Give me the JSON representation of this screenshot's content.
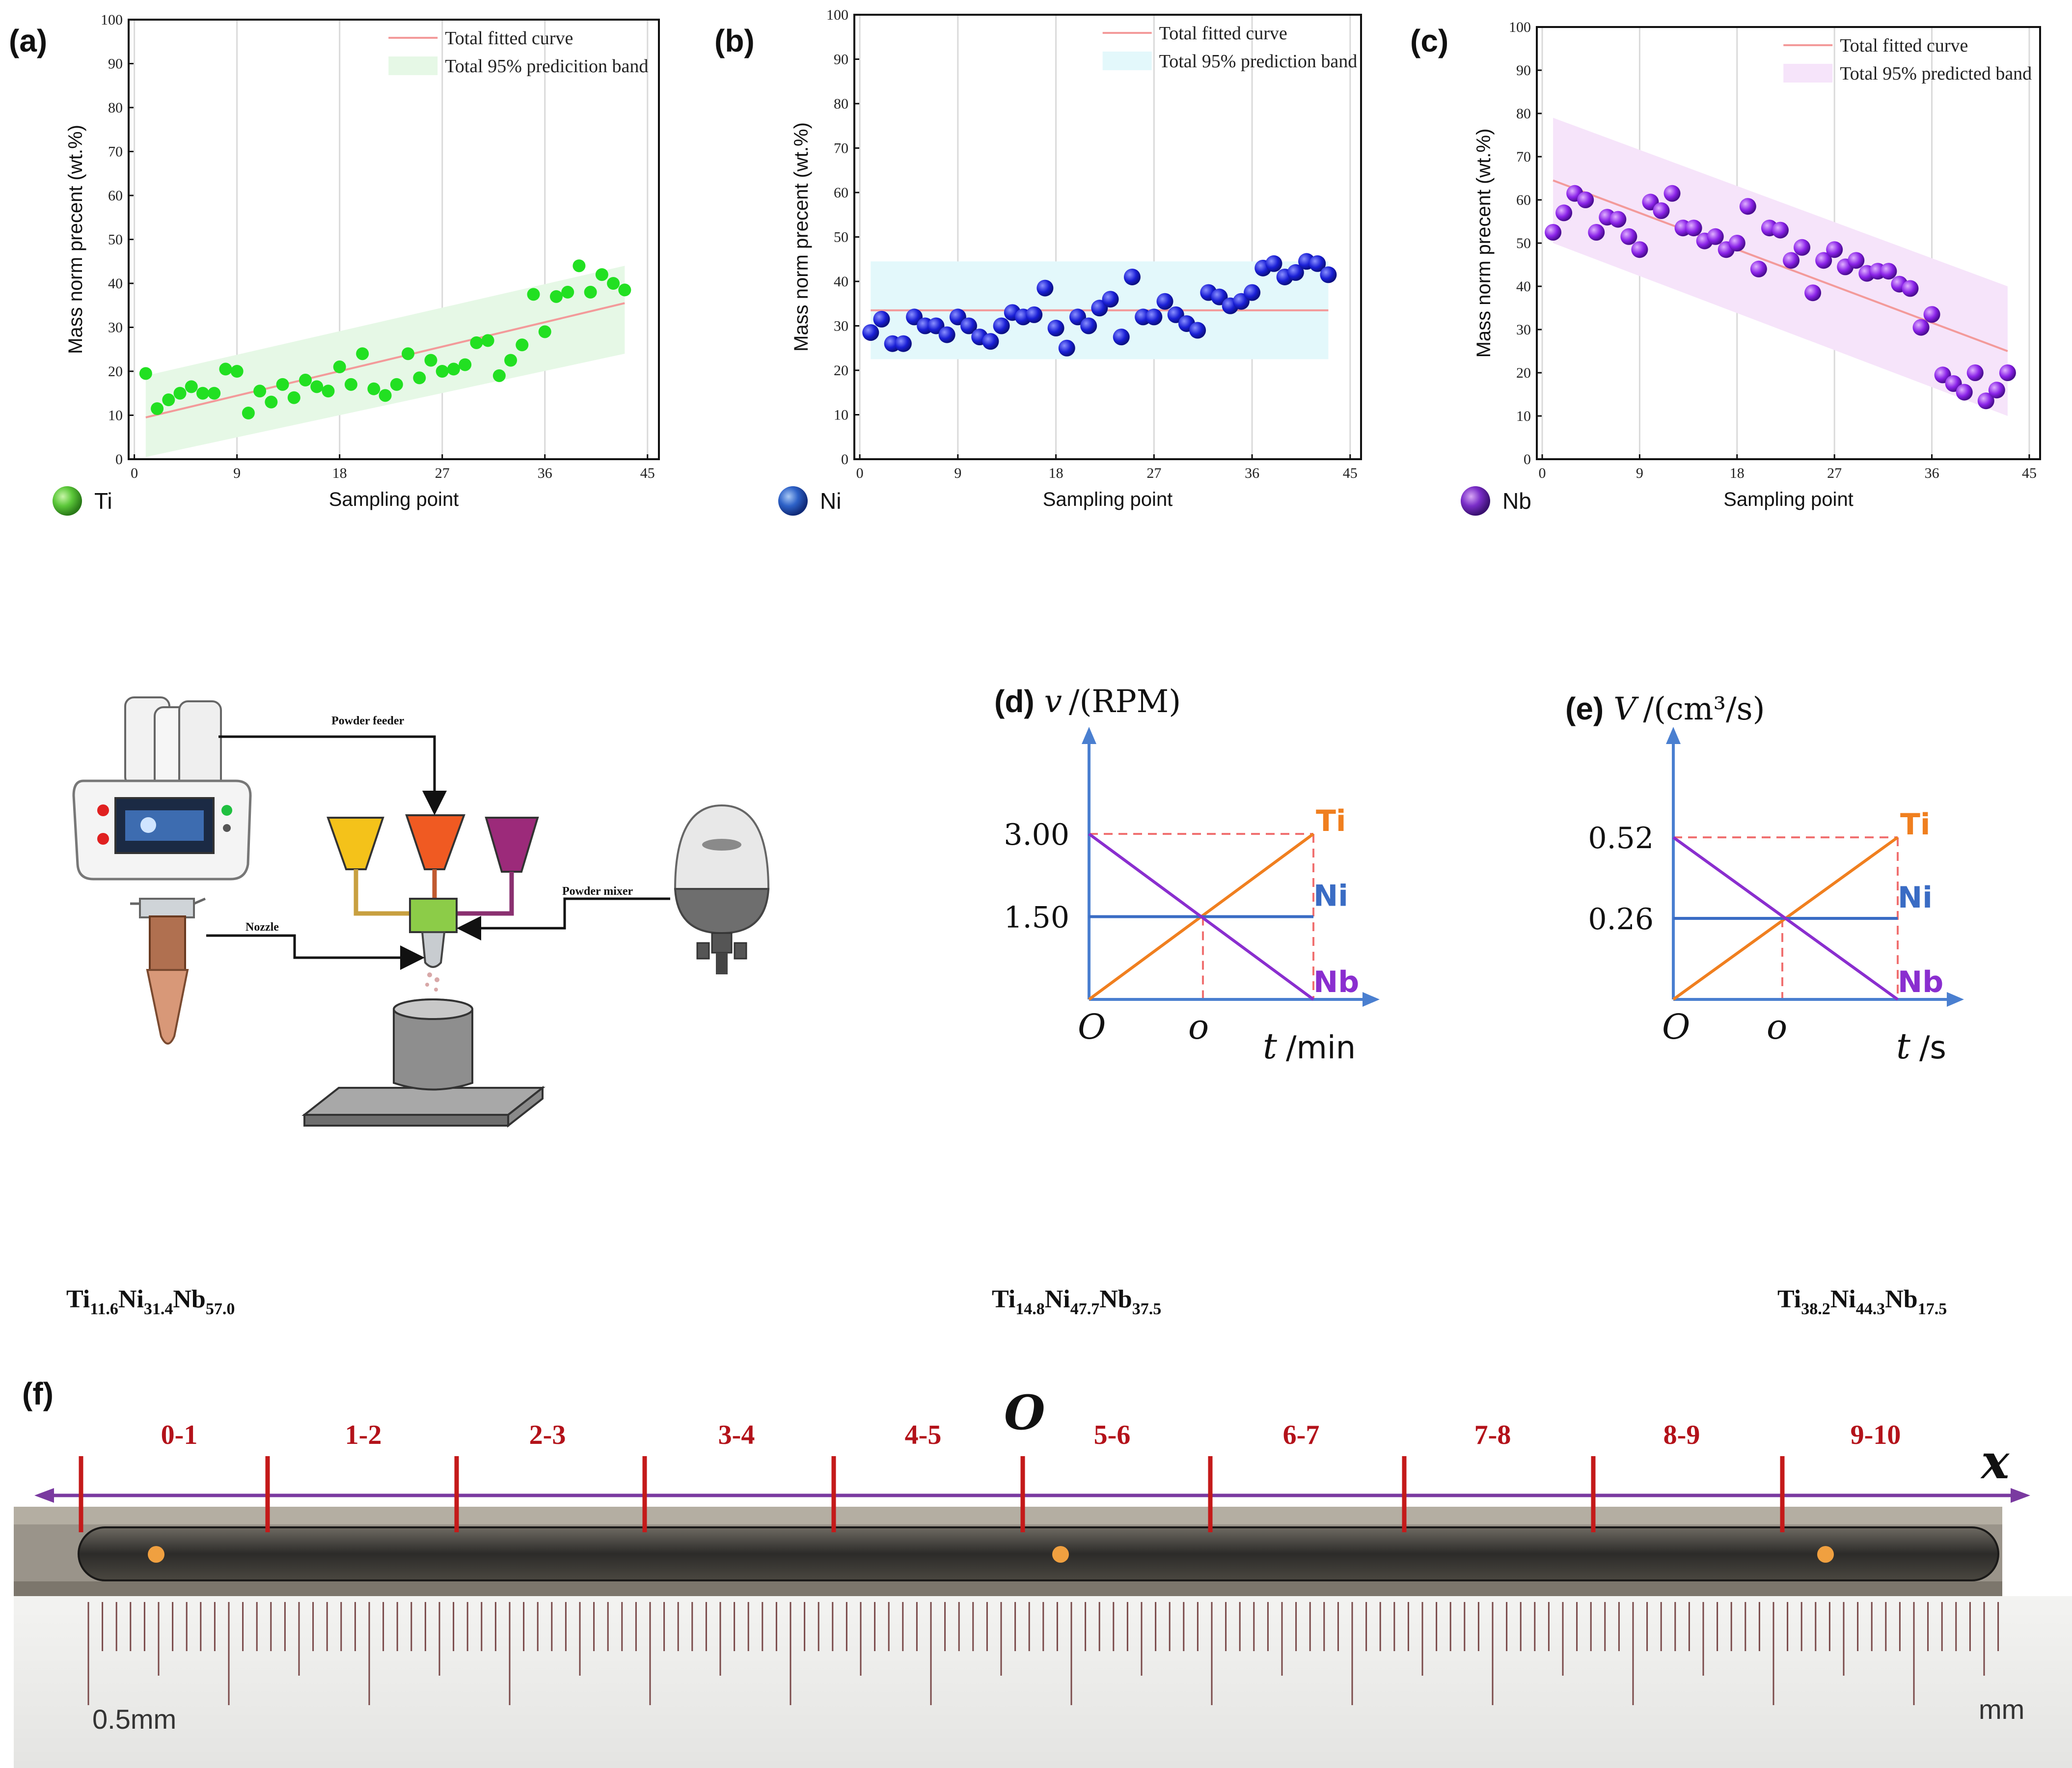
{
  "chart_data": [
    {
      "panel": "(a)",
      "type": "scatter",
      "element": "Ti",
      "xlabel": "Sampling point",
      "ylabel": "Mass norm precent  (wt.%)",
      "xticks": [
        0,
        9,
        18,
        27,
        36,
        45
      ],
      "yticks": [
        0,
        10,
        20,
        30,
        40,
        50,
        60,
        70,
        80,
        90,
        100
      ],
      "xlim": [
        -0.5,
        46
      ],
      "ylim": [
        0,
        100
      ],
      "legend": [
        "Total fitted curve",
        "Total 95% predicition band"
      ],
      "color": "#22e022",
      "band_color": "#e6f8e6",
      "fit": {
        "x": [
          1,
          43
        ],
        "y": [
          9.5,
          35.5
        ]
      },
      "band": {
        "x": [
          1,
          43
        ],
        "lower": [
          0.5,
          24
        ],
        "upper": [
          19,
          44
        ]
      },
      "x": [
        1,
        2,
        3,
        4,
        5,
        6,
        7,
        8,
        9,
        10,
        11,
        12,
        13,
        14,
        15,
        16,
        17,
        18,
        19,
        20,
        21,
        22,
        23,
        24,
        25,
        26,
        27,
        28,
        29,
        30,
        31,
        32,
        33,
        34,
        35,
        36,
        37,
        38,
        39,
        40,
        41,
        42,
        43
      ],
      "y": [
        19.5,
        11.5,
        13.5,
        15,
        16.5,
        15,
        15,
        20.5,
        20,
        10.5,
        15.5,
        13,
        17,
        14,
        18,
        16.5,
        15.5,
        21,
        17,
        24,
        16,
        14.5,
        17,
        24,
        18.5,
        22.5,
        20,
        20.5,
        21.5,
        26.5,
        27,
        19,
        22.5,
        26,
        37.5,
        29,
        37,
        38,
        44,
        38,
        42,
        40,
        38.5
      ]
    },
    {
      "panel": "(b)",
      "type": "scatter",
      "element": "Ni",
      "xlabel": "Sampling point",
      "ylabel": "Mass norm  precent  (wt.%)",
      "xticks": [
        0,
        9,
        18,
        27,
        36,
        45
      ],
      "yticks": [
        0,
        10,
        20,
        30,
        40,
        50,
        60,
        70,
        80,
        90,
        100
      ],
      "xlim": [
        -0.5,
        46
      ],
      "ylim": [
        0,
        100
      ],
      "legend": [
        "Total fitted curve",
        "Total 95% prediction band"
      ],
      "color": "#1a1fd6",
      "band_color": "#e3f8fb",
      "fit": {
        "x": [
          1,
          43
        ],
        "y": [
          33.5,
          33.5
        ]
      },
      "band": {
        "x": [
          1,
          43
        ],
        "lower": [
          22.5,
          22.5
        ],
        "upper": [
          44.5,
          44.5
        ]
      },
      "x": [
        1,
        2,
        3,
        4,
        5,
        6,
        7,
        8,
        9,
        10,
        11,
        12,
        13,
        14,
        15,
        16,
        17,
        18,
        19,
        20,
        21,
        22,
        23,
        24,
        25,
        26,
        27,
        28,
        29,
        30,
        31,
        32,
        33,
        34,
        35,
        36,
        37,
        38,
        39,
        40,
        41,
        42,
        43
      ],
      "y": [
        28.5,
        31.5,
        26,
        26,
        32,
        30,
        30,
        28,
        32,
        30,
        27.5,
        26.5,
        30,
        33,
        32,
        32.5,
        38.5,
        29.5,
        25,
        32,
        30,
        34,
        36,
        27.5,
        41,
        32,
        32,
        35.5,
        32.5,
        30.5,
        29,
        37.5,
        36.5,
        34.5,
        35.5,
        37.5,
        43,
        44,
        41,
        42,
        44.5,
        44,
        41.5
      ]
    },
    {
      "panel": "(c)",
      "type": "scatter",
      "element": "Nb",
      "xlabel": "Sampling point",
      "ylabel": "Mass norm  precent  (wt.%)",
      "xticks": [
        0,
        9,
        18,
        27,
        36,
        45
      ],
      "yticks": [
        0,
        10,
        20,
        30,
        40,
        50,
        60,
        70,
        80,
        90,
        100
      ],
      "xlim": [
        -0.5,
        46
      ],
      "ylim": [
        0,
        100
      ],
      "legend": [
        "Total fitted curve",
        "Total 95% predicted band"
      ],
      "color": "#8a22e8",
      "band_color": "#f6e4fa",
      "fit": {
        "x": [
          1,
          43
        ],
        "y": [
          64.5,
          25
        ]
      },
      "band": {
        "x": [
          1,
          43
        ],
        "lower": [
          50,
          10
        ],
        "upper": [
          79,
          40
        ]
      },
      "x": [
        1,
        2,
        3,
        4,
        5,
        6,
        7,
        8,
        9,
        10,
        11,
        12,
        13,
        14,
        15,
        16,
        17,
        18,
        19,
        20,
        21,
        22,
        23,
        24,
        25,
        26,
        27,
        28,
        29,
        30,
        31,
        32,
        33,
        34,
        35,
        36,
        37,
        38,
        39,
        40,
        41,
        42,
        43
      ],
      "y": [
        52.5,
        57,
        61.5,
        60,
        52.5,
        56,
        55.5,
        51.5,
        48.5,
        59.5,
        57.5,
        61.5,
        53.5,
        53.5,
        50.5,
        51.5,
        48.5,
        50,
        58.5,
        44,
        53.5,
        53,
        46,
        49,
        38.5,
        46,
        48.5,
        44.5,
        46,
        43,
        43.5,
        43.5,
        40.5,
        39.5,
        30.5,
        33.5,
        19.5,
        17.5,
        15.5,
        20,
        13.5,
        16,
        20
      ]
    },
    {
      "panel": "(d)",
      "type": "line",
      "title_symbol": "v",
      "title_unit": "/(RPM)",
      "origin_label": "O",
      "mid_label": "o",
      "x_symbol": "t",
      "x_unit": "/min",
      "yticks_labels": [
        "3.00",
        "1.50"
      ],
      "series": [
        {
          "name": "Ti",
          "color": "#f07f1f",
          "values": [
            0,
            3.0
          ]
        },
        {
          "name": "Ni",
          "color": "#3a6cc4",
          "values": [
            1.5,
            1.5
          ]
        },
        {
          "name": "Nb",
          "color": "#8a2ecf",
          "values": [
            3.0,
            0
          ]
        }
      ]
    },
    {
      "panel": "(e)",
      "type": "line",
      "title_symbol": "V",
      "title_unit": "/(cm³/s)",
      "origin_label": "O",
      "mid_label": "o",
      "x_symbol": "t",
      "x_unit": "/s",
      "yticks_labels": [
        "0.52",
        "0.26"
      ],
      "series": [
        {
          "name": "Ti",
          "color": "#f07f1f",
          "values": [
            0,
            0.52
          ]
        },
        {
          "name": "Ni",
          "color": "#3a6cc4",
          "values": [
            0.26,
            0.26
          ]
        },
        {
          "name": "Nb",
          "color": "#8a2ecf",
          "values": [
            0.52,
            0
          ]
        }
      ]
    }
  ],
  "diagram": {
    "powder_feeder": "Powder feeder",
    "nozzle": "Nozzle",
    "powder_mixer": "Powder mixer"
  },
  "sample_f": {
    "panel": "(f)",
    "compositions": [
      {
        "pre": "Ti",
        "a": "11.6",
        "b": "31.4",
        "c": "57.0"
      },
      {
        "pre": "Ti",
        "a": "14.8",
        "b": "47.7",
        "c": "37.5"
      },
      {
        "pre": "Ti",
        "a": "38.2",
        "b": "44.3",
        "c": "17.5"
      }
    ],
    "segments": [
      "0-1",
      "1-2",
      "2-3",
      "3-4",
      "4-5",
      "5-6",
      "6-7",
      "7-8",
      "8-9",
      "9-10"
    ],
    "origin_label": "O",
    "axis_label": "x",
    "ruler_label": "0.5mm",
    "ruler_unit": "mm"
  }
}
